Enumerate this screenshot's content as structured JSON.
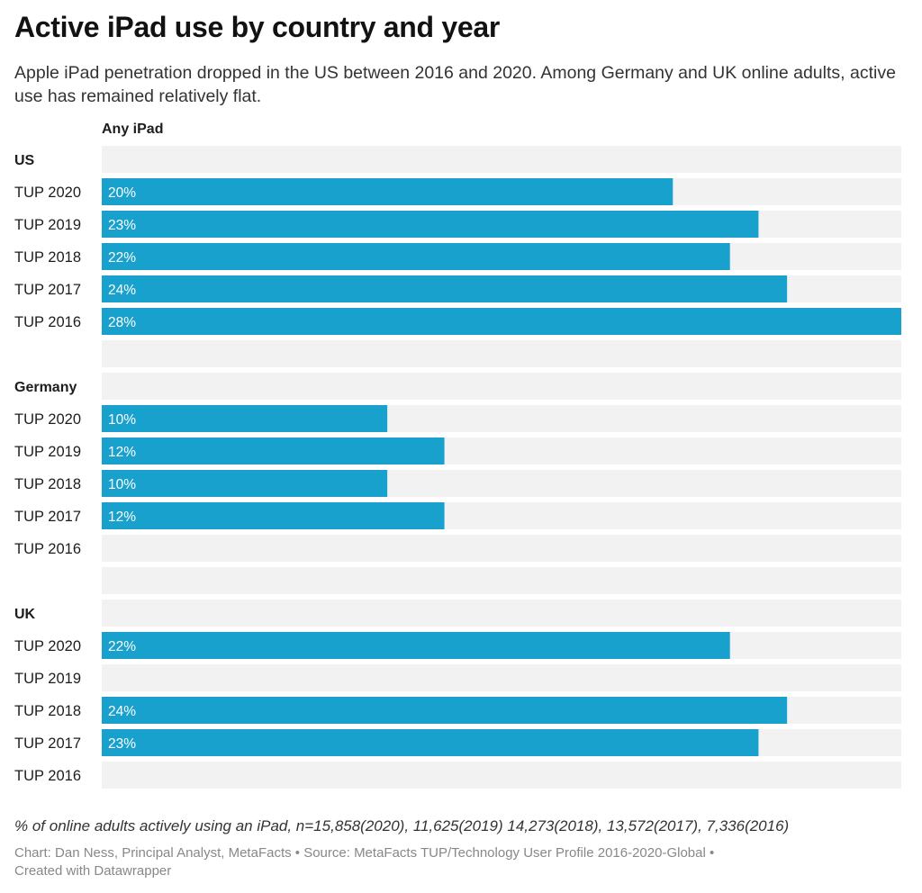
{
  "title": "Active iPad use by country and year",
  "subtitle": "Apple iPad penetration dropped in the US between 2016 and 2020. Among Germany and UK online adults, active use has remained relatively flat.",
  "column_header": "Any iPad",
  "footnote": "% of online adults actively using an iPad, n=15,858(2020), 11,625(2019) 14,273(2018), 13,572(2017), 7,336(2016)",
  "credits": {
    "line1": "Chart: Dan Ness, Principal Analyst, MetaFacts • Source: MetaFacts TUP/Technology User Profile 2016-2020-Global •",
    "line2": "Created with Datawrapper"
  },
  "colors": {
    "bar": "#18a1cd",
    "track": "#f2f2f2"
  },
  "chart_data": {
    "type": "bar",
    "orientation": "horizontal",
    "series": [
      {
        "name": "Any iPad",
        "value_suffix": "%"
      }
    ],
    "xlim": [
      0,
      28
    ],
    "groups": [
      {
        "name": "US",
        "rows": [
          {
            "label": "TUP 2020",
            "value": 20,
            "text": "20%"
          },
          {
            "label": "TUP 2019",
            "value": 23,
            "text": "23%"
          },
          {
            "label": "TUP 2018",
            "value": 22,
            "text": "22%"
          },
          {
            "label": "TUP 2017",
            "value": 24,
            "text": "24%"
          },
          {
            "label": "TUP 2016",
            "value": 28,
            "text": "28%"
          }
        ]
      },
      {
        "name": "Germany",
        "rows": [
          {
            "label": "TUP 2020",
            "value": 10,
            "text": "10%"
          },
          {
            "label": "TUP 2019",
            "value": 12,
            "text": "12%"
          },
          {
            "label": "TUP 2018",
            "value": 10,
            "text": "10%"
          },
          {
            "label": "TUP 2017",
            "value": 12,
            "text": "12%"
          },
          {
            "label": "TUP 2016",
            "value": null,
            "text": ""
          }
        ]
      },
      {
        "name": "UK",
        "rows": [
          {
            "label": "TUP 2020",
            "value": 22,
            "text": "22%"
          },
          {
            "label": "TUP 2019",
            "value": null,
            "text": ""
          },
          {
            "label": "TUP 2018",
            "value": 24,
            "text": "24%"
          },
          {
            "label": "TUP 2017",
            "value": 23,
            "text": "23%"
          },
          {
            "label": "TUP 2016",
            "value": null,
            "text": ""
          }
        ]
      }
    ]
  }
}
